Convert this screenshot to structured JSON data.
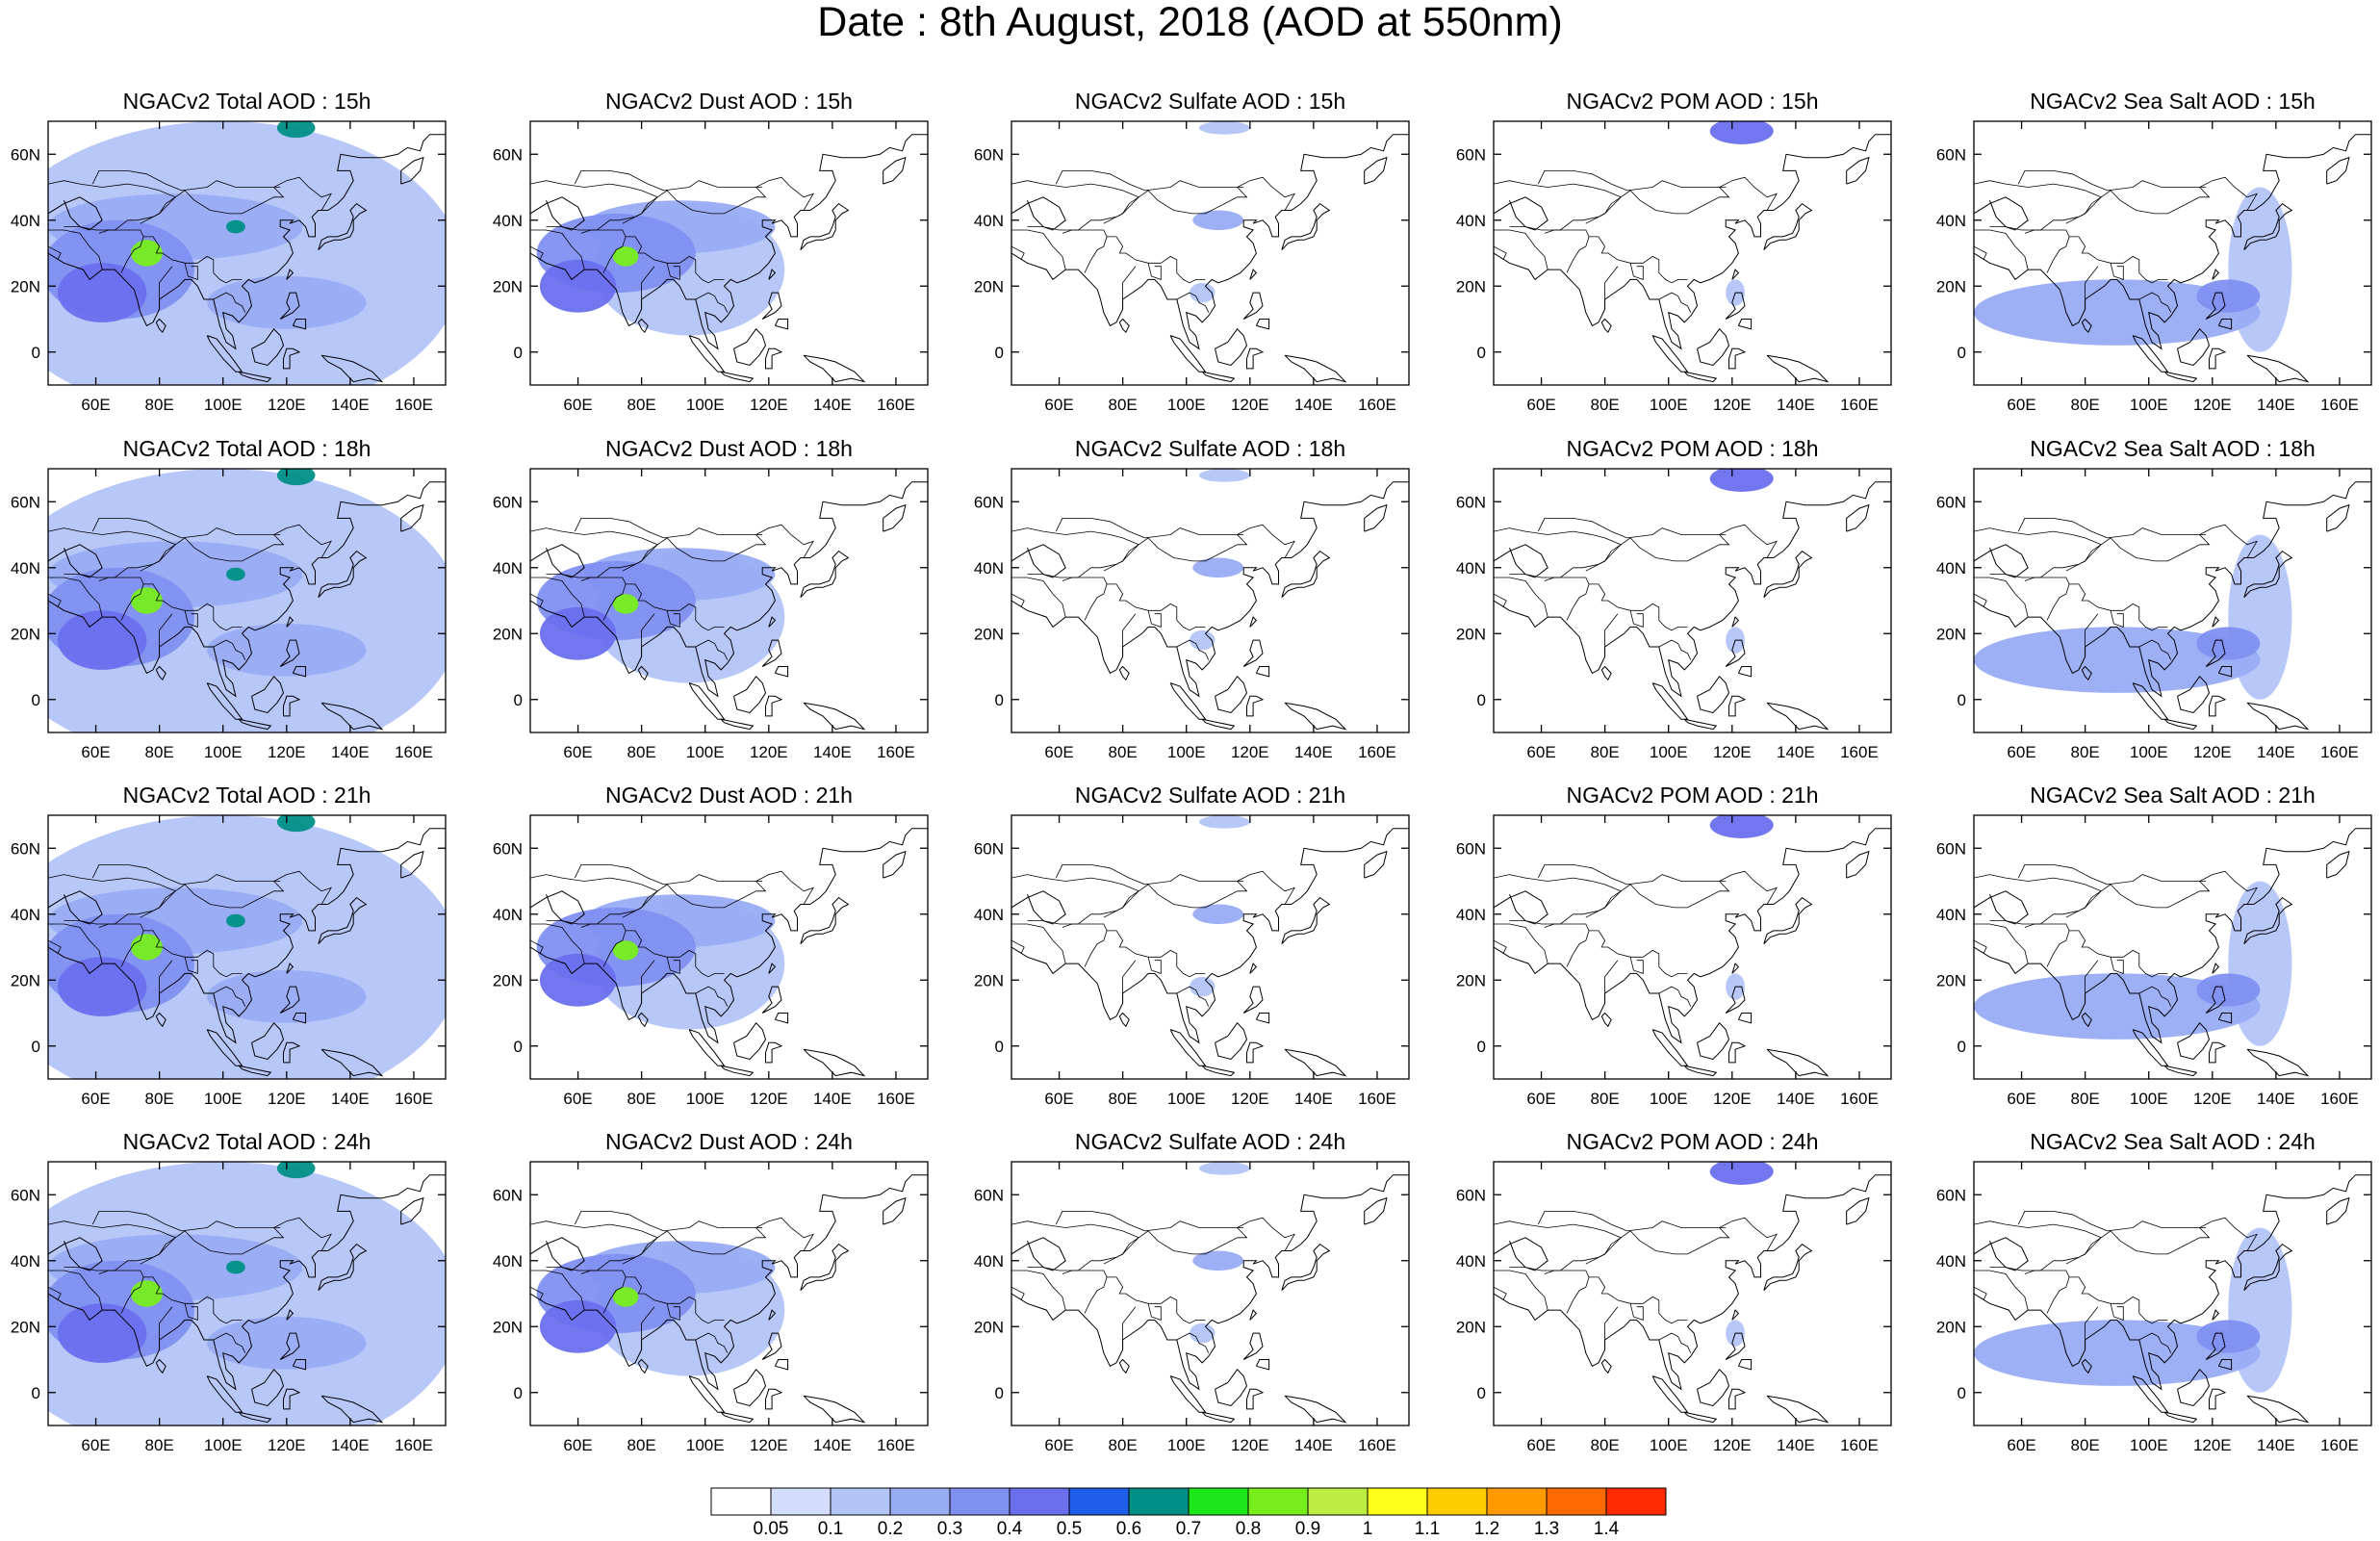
{
  "title": "Date : 8th August, 2018 (AOD at 550nm)",
  "map": {
    "lon_range": [
      45,
      170
    ],
    "lat_range": [
      -10,
      70
    ],
    "lon_ticks": [
      "60E",
      "80E",
      "100E",
      "120E",
      "140E",
      "160E"
    ],
    "lon_tick_values": [
      60,
      80,
      100,
      120,
      140,
      160
    ],
    "lat_ticks": [
      "0",
      "20N",
      "40N",
      "60N"
    ],
    "lat_tick_values": [
      0,
      20,
      40,
      60
    ]
  },
  "panels": [
    [
      {
        "title": "NGACv2 Total AOD : 15h",
        "variable": "total",
        "hour": "15h"
      },
      {
        "title": "NGACv2 Dust AOD : 15h",
        "variable": "dust",
        "hour": "15h"
      },
      {
        "title": "NGACv2 Sulfate AOD : 15h",
        "variable": "sulfate",
        "hour": "15h"
      },
      {
        "title": "NGACv2 POM AOD : 15h",
        "variable": "pom",
        "hour": "15h"
      },
      {
        "title": "NGACv2 Sea Salt AOD : 15h",
        "variable": "seasalt",
        "hour": "15h"
      }
    ],
    [
      {
        "title": "NGACv2 Total AOD : 18h",
        "variable": "total",
        "hour": "18h"
      },
      {
        "title": "NGACv2 Dust AOD : 18h",
        "variable": "dust",
        "hour": "18h"
      },
      {
        "title": "NGACv2 Sulfate AOD : 18h",
        "variable": "sulfate",
        "hour": "18h"
      },
      {
        "title": "NGACv2 POM AOD : 18h",
        "variable": "pom",
        "hour": "18h"
      },
      {
        "title": "NGACv2 Sea Salt AOD : 18h",
        "variable": "seasalt",
        "hour": "18h"
      }
    ],
    [
      {
        "title": "NGACv2 Total AOD : 21h",
        "variable": "total",
        "hour": "21h"
      },
      {
        "title": "NGACv2 Dust AOD : 21h",
        "variable": "dust",
        "hour": "21h"
      },
      {
        "title": "NGACv2 Sulfate AOD : 21h",
        "variable": "sulfate",
        "hour": "21h"
      },
      {
        "title": "NGACv2 POM AOD : 21h",
        "variable": "pom",
        "hour": "21h"
      },
      {
        "title": "NGACv2 Sea Salt AOD : 21h",
        "variable": "seasalt",
        "hour": "21h"
      }
    ],
    [
      {
        "title": "NGACv2 Total AOD : 24h",
        "variable": "total",
        "hour": "24h"
      },
      {
        "title": "NGACv2 Dust AOD : 24h",
        "variable": "dust",
        "hour": "24h"
      },
      {
        "title": "NGACv2 Sulfate AOD : 24h",
        "variable": "sulfate",
        "hour": "24h"
      },
      {
        "title": "NGACv2 POM AOD : 24h",
        "variable": "pom",
        "hour": "24h"
      },
      {
        "title": "NGACv2 Sea Salt  AOD : 24h",
        "variable": "seasalt",
        "hour": "24h"
      }
    ]
  ],
  "colorbar": {
    "labels": [
      "0.05",
      "0.1",
      "0.2",
      "0.3",
      "0.4",
      "0.5",
      "0.6",
      "0.7",
      "0.8",
      "0.9",
      "1",
      "1.1",
      "1.2",
      "1.3",
      "1.4"
    ],
    "colors": [
      "#ffffff",
      "#d3dcfa",
      "#b3c4f7",
      "#98acf4",
      "#7f90f1",
      "#6a6fee",
      "#1d5fe8",
      "#009087",
      "#1ee81c",
      "#77ee1c",
      "#beee44",
      "#ffff1a",
      "#ffcc00",
      "#ff9b00",
      "#ff6a00",
      "#ff2b00"
    ]
  },
  "chart_data": {
    "type": "heatmap",
    "title": "Date : 8th August, 2018 (AOD at 550nm)",
    "x_axis": {
      "range": [
        45,
        170
      ],
      "ticks": [
        "60E",
        "80E",
        "100E",
        "120E",
        "140E",
        "160E"
      ]
    },
    "y_axis": {
      "range": [
        -10,
        70
      ],
      "ticks": [
        "0",
        "20N",
        "40N",
        "60N"
      ]
    },
    "levels": [
      0.05,
      0.1,
      0.2,
      0.3,
      0.4,
      0.5,
      0.6,
      0.7,
      0.8,
      0.9,
      1,
      1.1,
      1.2,
      1.3,
      1.4
    ],
    "rows": [
      "15h",
      "18h",
      "21h",
      "24h"
    ],
    "columns": [
      "Total",
      "Dust",
      "Sulfate",
      "POM",
      "Sea Salt"
    ],
    "features": {
      "total": [
        {
          "lon": 62,
          "lat": 18,
          "rx": 14,
          "ry": 9,
          "aod": 0.45
        },
        {
          "lon": 76,
          "lat": 30,
          "rx": 5,
          "ry": 4,
          "aod": 0.8
        },
        {
          "lon": 67,
          "lat": 25,
          "rx": 24,
          "ry": 15,
          "aod": 0.3
        },
        {
          "lon": 85,
          "lat": 38,
          "rx": 40,
          "ry": 10,
          "aod": 0.2
        },
        {
          "lon": 104,
          "lat": 38,
          "rx": 3,
          "ry": 2,
          "aod": 0.6
        },
        {
          "lon": 120,
          "lat": 15,
          "rx": 25,
          "ry": 8,
          "aod": 0.2
        },
        {
          "lon": 123,
          "lat": 68,
          "rx": 6,
          "ry": 3,
          "aod": 0.65
        },
        {
          "lon": 100,
          "lat": 25,
          "rx": 75,
          "ry": 45,
          "aod": 0.1
        }
      ],
      "dust": [
        {
          "lon": 60,
          "lat": 20,
          "rx": 12,
          "ry": 8,
          "aod": 0.4
        },
        {
          "lon": 75,
          "lat": 29,
          "rx": 4,
          "ry": 3,
          "aod": 0.8
        },
        {
          "lon": 72,
          "lat": 30,
          "rx": 25,
          "ry": 12,
          "aod": 0.3
        },
        {
          "lon": 92,
          "lat": 38,
          "rx": 30,
          "ry": 8,
          "aod": 0.2
        },
        {
          "lon": 95,
          "lat": 25,
          "rx": 30,
          "ry": 20,
          "aod": 0.1
        }
      ],
      "sulfate": [
        {
          "lon": 110,
          "lat": 40,
          "rx": 8,
          "ry": 3,
          "aod": 0.2
        },
        {
          "lon": 105,
          "lat": 18,
          "rx": 4,
          "ry": 3,
          "aod": 0.1
        },
        {
          "lon": 112,
          "lat": 68,
          "rx": 8,
          "ry": 2,
          "aod": 0.1
        }
      ],
      "pom": [
        {
          "lon": 123,
          "lat": 67,
          "rx": 10,
          "ry": 4,
          "aod": 0.4
        },
        {
          "lon": 121,
          "lat": 18,
          "rx": 3,
          "ry": 4,
          "aod": 0.1
        }
      ],
      "seasalt": [
        {
          "lon": 90,
          "lat": 12,
          "rx": 45,
          "ry": 10,
          "aod": 0.2
        },
        {
          "lon": 135,
          "lat": 25,
          "rx": 10,
          "ry": 25,
          "aod": 0.1
        },
        {
          "lon": 125,
          "lat": 17,
          "rx": 10,
          "ry": 5,
          "aod": 0.3
        }
      ]
    }
  }
}
